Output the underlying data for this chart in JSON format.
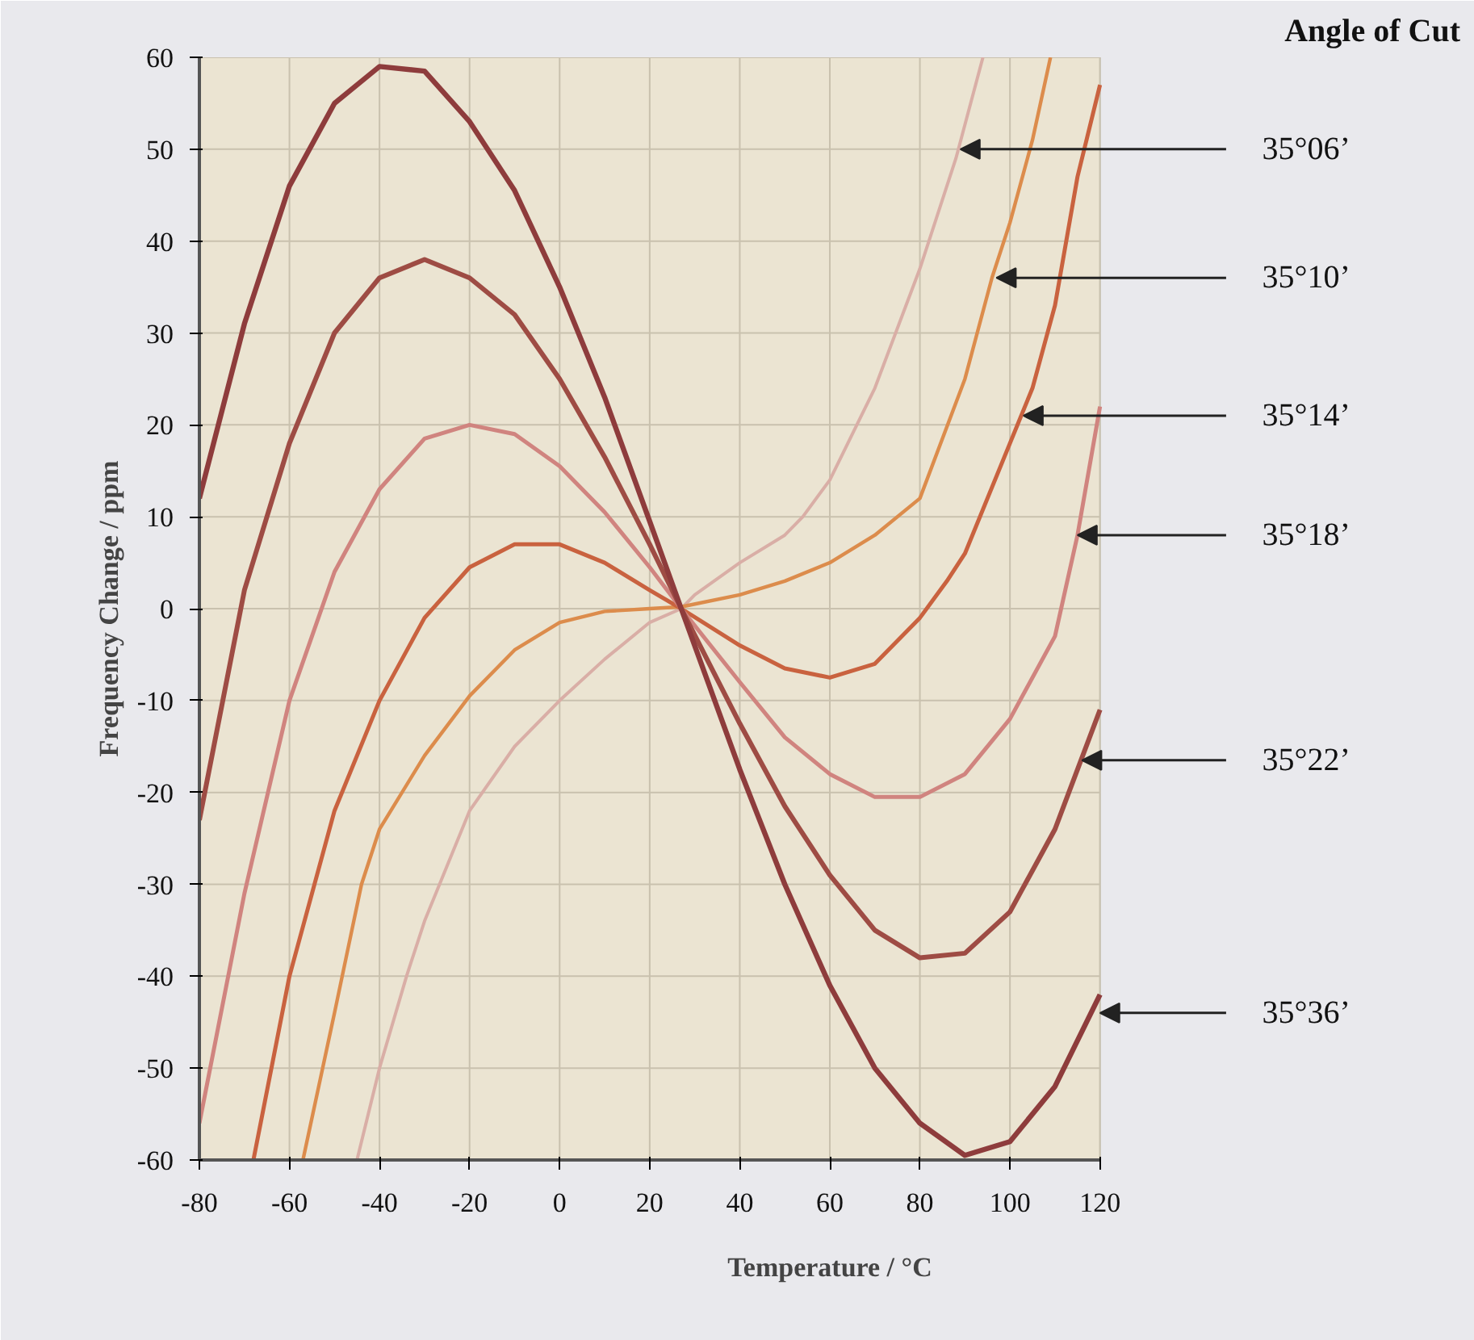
{
  "chart_data": {
    "type": "line",
    "xlabel": "Temperature / °C",
    "ylabel": "Frequency Change / ppm",
    "legend_title": "Angle of Cut",
    "xlim": [
      -80,
      120
    ],
    "ylim": [
      -60,
      60
    ],
    "xticks": [
      -80,
      -60,
      -40,
      -20,
      0,
      20,
      40,
      60,
      80,
      100,
      120
    ],
    "yticks": [
      -60,
      -50,
      -40,
      -30,
      -20,
      -10,
      0,
      10,
      20,
      30,
      40,
      50,
      60
    ],
    "grid": true,
    "series": [
      {
        "color": "#d9aea6",
        "x": [
          -45,
          -40,
          -34,
          -30,
          -20,
          -10,
          0,
          10,
          20,
          27,
          30,
          40,
          50,
          54,
          60,
          70,
          80,
          88,
          94
        ],
        "values": [
          -60,
          -50,
          -40,
          -34,
          -22,
          -15,
          -10,
          -5.5,
          -1.5,
          0,
          1.5,
          5,
          8,
          10,
          14,
          24,
          37,
          49,
          60
        ]
      },
      {
        "color": "#dc8c4c",
        "x": [
          -57,
          -50,
          -44,
          -40,
          -30,
          -20,
          -10,
          0,
          10,
          20,
          27,
          40,
          50,
          60,
          70,
          80,
          90,
          96,
          100,
          105,
          109
        ],
        "values": [
          -60,
          -44,
          -30,
          -24,
          -16,
          -9.5,
          -4.5,
          -1.5,
          -0.3,
          0,
          0.2,
          1.5,
          3,
          5,
          8,
          12,
          25,
          36,
          42,
          51,
          60
        ]
      },
      {
        "color": "#c9623f",
        "x": [
          -68,
          -60,
          -50,
          -40,
          -30,
          -20,
          -10,
          0,
          10,
          20,
          27,
          40,
          50,
          60,
          70,
          80,
          86,
          90,
          100,
          105,
          110,
          115,
          120
        ],
        "values": [
          -60,
          -40,
          -22,
          -10,
          -1,
          4.5,
          7,
          7,
          5,
          2,
          0,
          -4,
          -6.5,
          -7.5,
          -6,
          -1,
          3,
          6,
          18,
          24,
          33,
          47,
          57
        ]
      },
      {
        "color": "#d0847f",
        "x": [
          -80,
          -70,
          -60,
          -50,
          -40,
          -30,
          -20,
          -10,
          0,
          10,
          20,
          27,
          40,
          50,
          60,
          70,
          80,
          90,
          100,
          110,
          115,
          120
        ],
        "values": [
          -56,
          -31,
          -10,
          4,
          13,
          18.5,
          20,
          19,
          15.5,
          10.5,
          4.5,
          0,
          -8,
          -14,
          -18,
          -20.5,
          -20.5,
          -18,
          -12,
          -3,
          8,
          22
        ]
      },
      {
        "color": "#9e4c44",
        "x": [
          -80,
          -70,
          -60,
          -50,
          -40,
          -30,
          -20,
          -10,
          0,
          10,
          20,
          27,
          40,
          50,
          60,
          70,
          80,
          90,
          100,
          110,
          120
        ],
        "values": [
          -23,
          2,
          18,
          30,
          36,
          38,
          36,
          32,
          25,
          16.5,
          7,
          0,
          -12.5,
          -21.5,
          -29,
          -35,
          -38,
          -37.5,
          -33,
          -24,
          -11
        ]
      },
      {
        "color": "#8e3c3c",
        "x": [
          -80,
          -70,
          -60,
          -50,
          -40,
          -30,
          -20,
          -10,
          0,
          10,
          20,
          27,
          40,
          50,
          60,
          70,
          80,
          90,
          100,
          110,
          120
        ],
        "values": [
          12,
          31,
          46,
          55,
          59,
          58.5,
          53,
          45.5,
          35,
          23,
          9.5,
          0,
          -17.5,
          -30,
          -41,
          -50,
          -56,
          -59.5,
          -58,
          -52,
          -42
        ]
      }
    ],
    "annotations": [
      {
        "text": "35°06’",
        "x": 89,
        "y": 50
      },
      {
        "text": "35°10’",
        "x": 97,
        "y": 36
      },
      {
        "text": "35°14’",
        "x": 103,
        "y": 21
      },
      {
        "text": "35°18’",
        "x": 115,
        "y": 8
      },
      {
        "text": "35°22’",
        "x": 116,
        "y": -16.5
      },
      {
        "text": "35°36’",
        "x": 120,
        "y": -44
      }
    ]
  }
}
